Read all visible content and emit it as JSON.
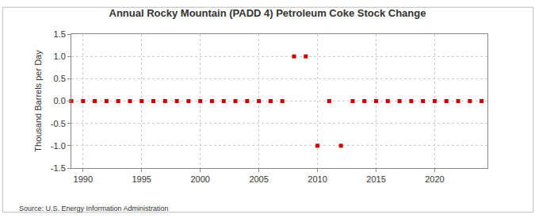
{
  "chart_data": {
    "type": "scatter",
    "title": "Annual Rocky Mountain (PADD 4) Petroleum Coke Stock Change",
    "y_label": "Thousand Barrels per Day",
    "source": "Source: U.S. Energy Information Administration",
    "x": [
      1989,
      1990,
      1991,
      1992,
      1993,
      1994,
      1995,
      1996,
      1997,
      1998,
      1999,
      2000,
      2001,
      2002,
      2003,
      2004,
      2005,
      2006,
      2007,
      2008,
      2009,
      2010,
      2011,
      2012,
      2013,
      2014,
      2015,
      2016,
      2017,
      2018,
      2019,
      2020,
      2021,
      2022,
      2023,
      2024
    ],
    "values": [
      0,
      0,
      0,
      0,
      0,
      0,
      0,
      0,
      0,
      0,
      0,
      0,
      0,
      0,
      0,
      0,
      0,
      0,
      0,
      1,
      1,
      -1,
      0,
      -1,
      0,
      0,
      0,
      0,
      0,
      0,
      0,
      0,
      0,
      0,
      0,
      0
    ],
    "color": "#cc0000",
    "marker": "square",
    "xlim": [
      1989,
      2024.5
    ],
    "xticks": [
      1990,
      1995,
      2000,
      2005,
      2010,
      2015,
      2020
    ],
    "ylim": [
      -1.5,
      1.5
    ],
    "yticks": [
      -1.5,
      {
        "value": -1,
        "label": "-1.0"
      },
      -0.5,
      {
        "value": 0,
        "label": "0.0"
      },
      0.5,
      {
        "value": 1,
        "label": "1.0"
      },
      1.5
    ],
    "grid": true
  }
}
